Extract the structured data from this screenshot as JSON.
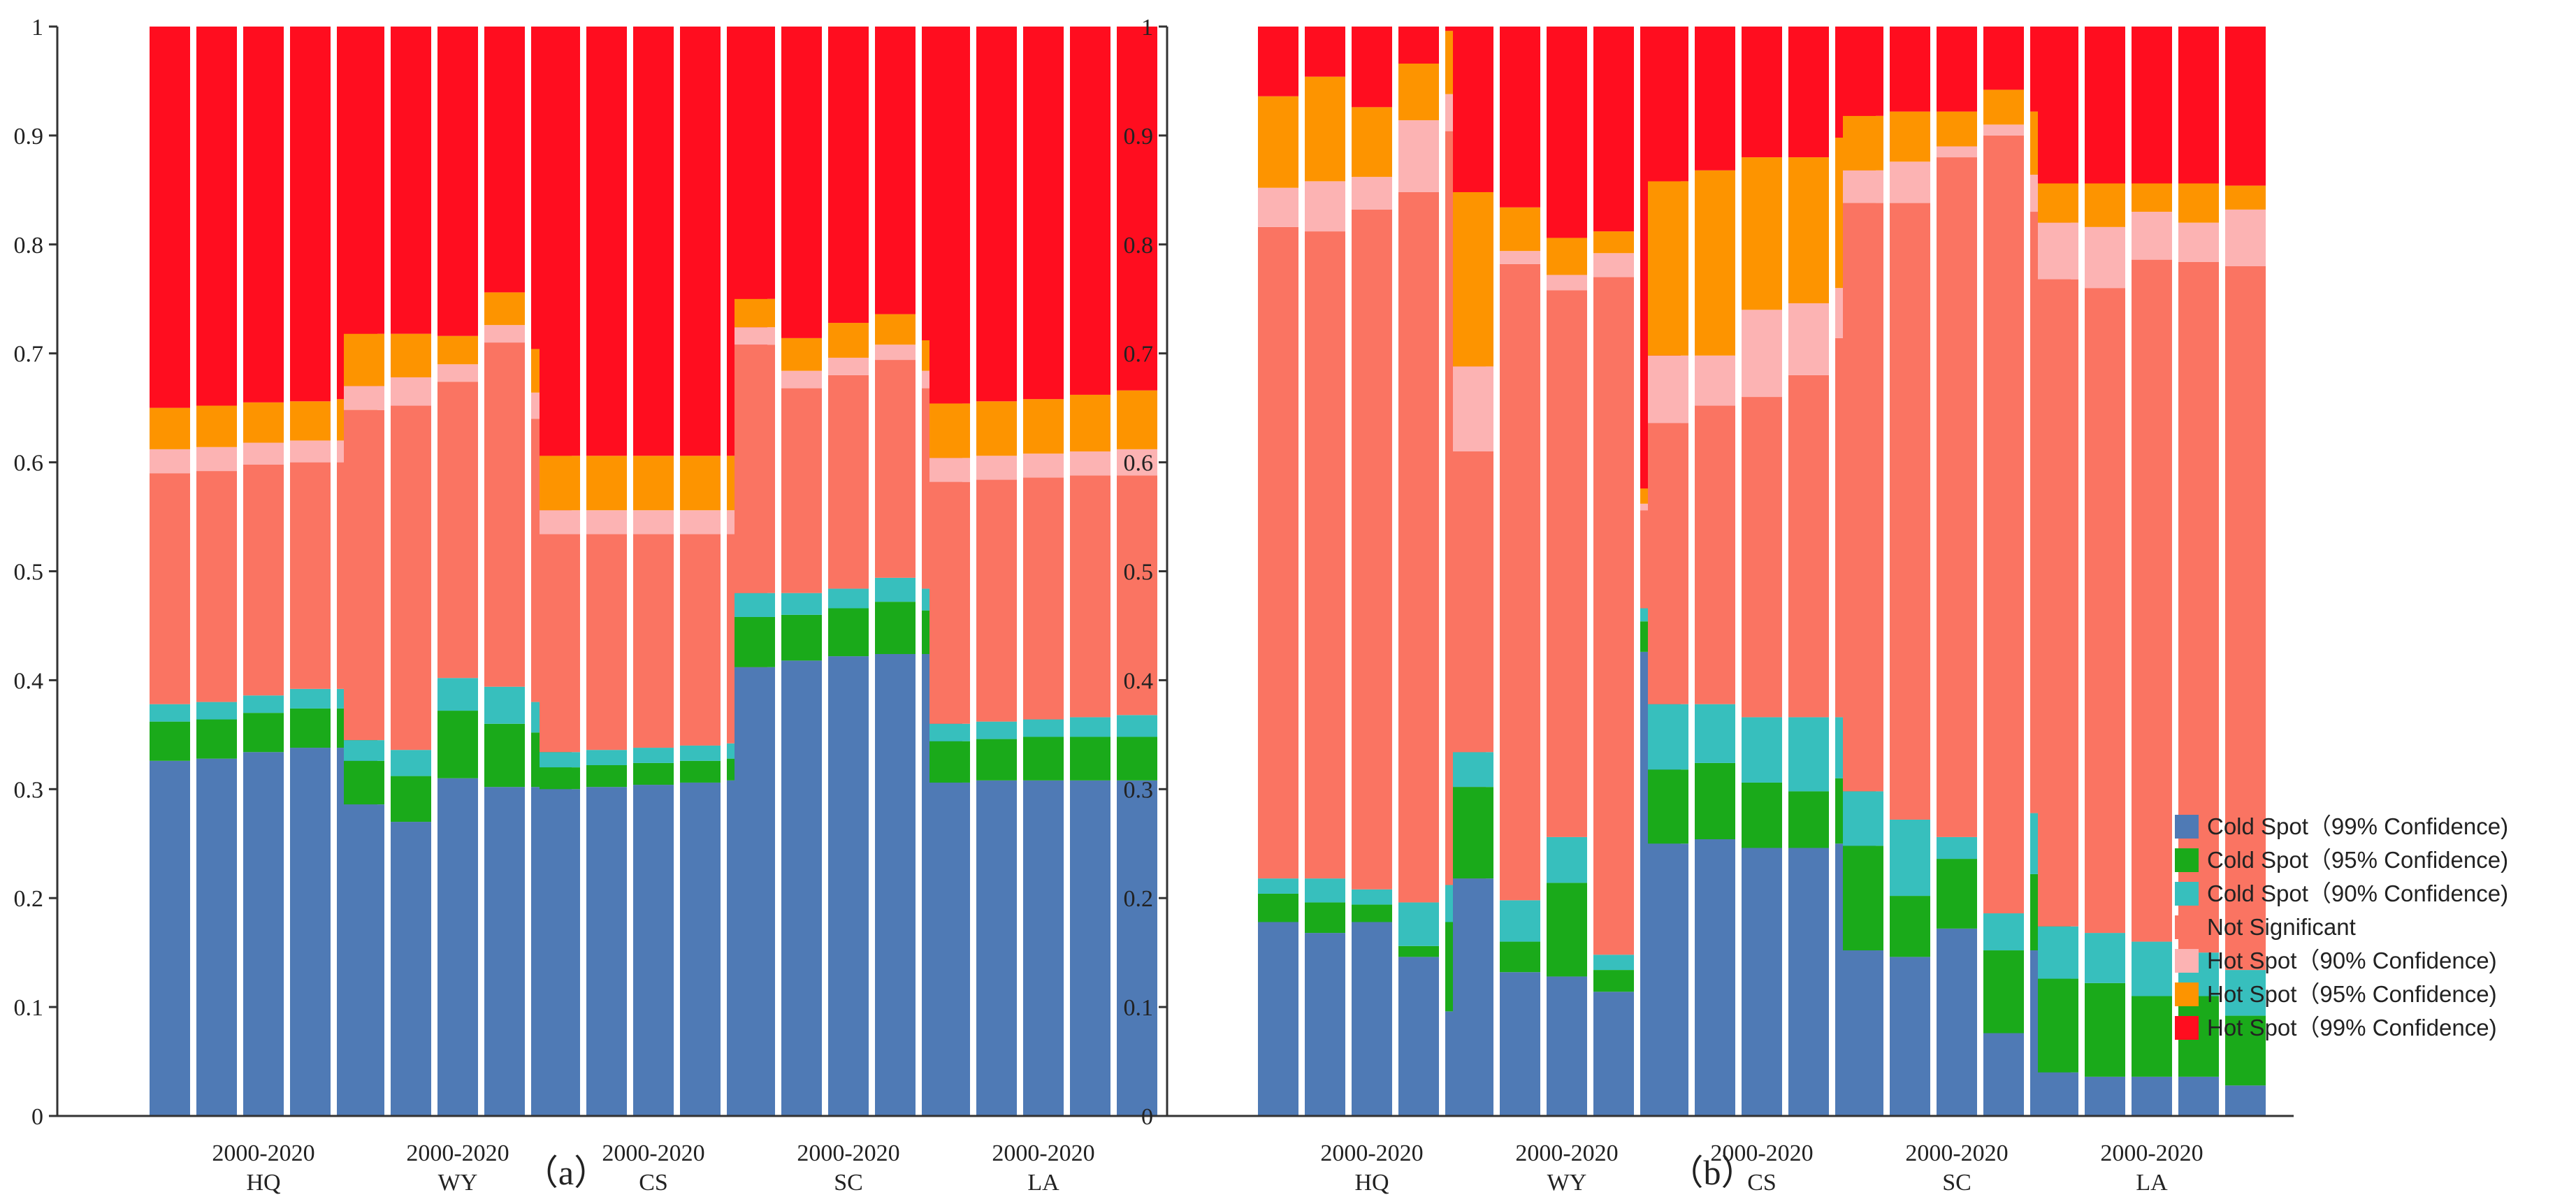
{
  "figure": {
    "panel_labels": [
      "（a）",
      "（b）"
    ]
  },
  "segment_names": [
    "Cold Spot（99% Confidence)",
    "Cold Spot（95% Confidence)",
    "Cold Spot（90% Confidence)",
    "Not Significant",
    "Hot Spot（90% Confidence)",
    "Hot Spot（95% Confidence)",
    "Hot Spot（99% Confidence)"
  ],
  "colors": [
    "#4f7ab5",
    "#1aaa1a",
    "#37bfbd",
    "#fa7462",
    "#fcb3b3",
    "#fd9400",
    "#ff0d1f"
  ],
  "chart_data": [
    {
      "type": "stacked-bar",
      "panel_label": "（a）",
      "ylim": [
        0,
        1
      ],
      "yticks": [
        "0",
        "0.1",
        "0.2",
        "0.3",
        "0.4",
        "0.5",
        "0.6",
        "0.7",
        "0.8",
        "0.9",
        "1"
      ],
      "bars_per_group": 5,
      "groups": [
        {
          "period": "2000-2020",
          "name": "HQ",
          "bars": [
            [
              0.326,
              0.362,
              0.378,
              0.59,
              0.612,
              0.65,
              1
            ],
            [
              0.328,
              0.364,
              0.38,
              0.592,
              0.614,
              0.652,
              1
            ],
            [
              0.334,
              0.37,
              0.386,
              0.598,
              0.618,
              0.655,
              1
            ],
            [
              0.338,
              0.374,
              0.392,
              0.6,
              0.62,
              0.656,
              1
            ],
            [
              0.338,
              0.374,
              0.392,
              0.6,
              0.62,
              0.658,
              1
            ]
          ]
        },
        {
          "period": "2000-2020",
          "name": "WY",
          "bars": [
            [
              0.286,
              0.326,
              0.345,
              0.648,
              0.67,
              0.718,
              1
            ],
            [
              0.27,
              0.312,
              0.336,
              0.652,
              0.678,
              0.718,
              1
            ],
            [
              0.31,
              0.372,
              0.402,
              0.674,
              0.69,
              0.716,
              1
            ],
            [
              0.302,
              0.36,
              0.394,
              0.71,
              0.726,
              0.756,
              1
            ],
            [
              0.302,
              0.352,
              0.38,
              0.64,
              0.664,
              0.704,
              1
            ]
          ]
        },
        {
          "period": "2000-2020",
          "name": "CS",
          "bars": [
            [
              0.3,
              0.32,
              0.334,
              0.534,
              0.556,
              0.606,
              1
            ],
            [
              0.302,
              0.322,
              0.336,
              0.534,
              0.556,
              0.606,
              1
            ],
            [
              0.304,
              0.324,
              0.338,
              0.534,
              0.556,
              0.606,
              1
            ],
            [
              0.306,
              0.326,
              0.34,
              0.534,
              0.556,
              0.606,
              1
            ],
            [
              0.308,
              0.328,
              0.342,
              0.534,
              0.556,
              0.606,
              1
            ]
          ]
        },
        {
          "period": "2000-2020",
          "name": "SC",
          "bars": [
            [
              0.412,
              0.458,
              0.48,
              0.708,
              0.724,
              0.75,
              1
            ],
            [
              0.418,
              0.46,
              0.48,
              0.668,
              0.684,
              0.714,
              1
            ],
            [
              0.422,
              0.466,
              0.484,
              0.68,
              0.696,
              0.728,
              1
            ],
            [
              0.424,
              0.472,
              0.494,
              0.694,
              0.708,
              0.736,
              1
            ],
            [
              0.424,
              0.464,
              0.484,
              0.668,
              0.684,
              0.712,
              1
            ]
          ]
        },
        {
          "period": "2000-2020",
          "name": "LA",
          "bars": [
            [
              0.306,
              0.344,
              0.36,
              0.582,
              0.604,
              0.654,
              1
            ],
            [
              0.308,
              0.346,
              0.362,
              0.584,
              0.606,
              0.656,
              1
            ],
            [
              0.308,
              0.348,
              0.364,
              0.586,
              0.608,
              0.658,
              1
            ],
            [
              0.308,
              0.348,
              0.366,
              0.588,
              0.61,
              0.662,
              1
            ],
            [
              0.308,
              0.348,
              0.368,
              0.588,
              0.612,
              0.666,
              1
            ]
          ]
        }
      ]
    },
    {
      "type": "stacked-bar",
      "panel_label": "（b）",
      "ylim": [
        0,
        1
      ],
      "yticks": [
        "0",
        "0.1",
        "0.2",
        "0.3",
        "0.4",
        "0.5",
        "0.6",
        "0.7",
        "0.8",
        "0.9",
        "1"
      ],
      "bars_per_group": 5,
      "groups": [
        {
          "period": "2000-2020",
          "name": "HQ",
          "bars": [
            [
              0.178,
              0.204,
              0.218,
              0.816,
              0.852,
              0.936,
              1
            ],
            [
              0.168,
              0.196,
              0.218,
              0.812,
              0.858,
              0.954,
              1
            ],
            [
              0.178,
              0.194,
              0.208,
              0.832,
              0.862,
              0.926,
              1
            ],
            [
              0.146,
              0.156,
              0.196,
              0.848,
              0.914,
              0.966,
              1
            ],
            [
              0.096,
              0.178,
              0.212,
              0.904,
              0.938,
              0.996,
              1
            ]
          ]
        },
        {
          "period": "2000-2020",
          "name": "WY",
          "bars": [
            [
              0.218,
              0.302,
              0.334,
              0.61,
              0.688,
              0.848,
              1
            ],
            [
              0.132,
              0.16,
              0.198,
              0.782,
              0.794,
              0.834,
              1
            ],
            [
              0.128,
              0.214,
              0.256,
              0.758,
              0.772,
              0.806,
              1
            ],
            [
              0.114,
              0.134,
              0.148,
              0.77,
              0.792,
              0.812,
              1
            ],
            [
              0.426,
              0.454,
              0.466,
              0.556,
              0.562,
              0.576,
              1
            ]
          ]
        },
        {
          "period": "2000-2020",
          "name": "CS",
          "bars": [
            [
              0.25,
              0.318,
              0.378,
              0.636,
              0.698,
              0.858,
              1
            ],
            [
              0.254,
              0.324,
              0.378,
              0.652,
              0.698,
              0.868,
              1
            ],
            [
              0.246,
              0.306,
              0.366,
              0.66,
              0.74,
              0.88,
              1
            ],
            [
              0.246,
              0.298,
              0.366,
              0.68,
              0.746,
              0.88,
              1
            ],
            [
              0.25,
              0.31,
              0.366,
              0.714,
              0.76,
              0.898,
              1
            ]
          ]
        },
        {
          "period": "2000-2020",
          "name": "SC",
          "bars": [
            [
              0.152,
              0.248,
              0.298,
              0.838,
              0.868,
              0.918,
              1
            ],
            [
              0.146,
              0.202,
              0.272,
              0.838,
              0.876,
              0.922,
              1
            ],
            [
              0.172,
              0.236,
              0.256,
              0.88,
              0.89,
              0.922,
              1
            ],
            [
              0.076,
              0.152,
              0.186,
              0.9,
              0.91,
              0.942,
              1
            ],
            [
              0.152,
              0.222,
              0.278,
              0.83,
              0.864,
              0.922,
              1
            ]
          ]
        },
        {
          "period": "2000-2020",
          "name": "LA",
          "bars": [
            [
              0.04,
              0.126,
              0.174,
              0.768,
              0.82,
              0.856,
              1
            ],
            [
              0.036,
              0.122,
              0.168,
              0.76,
              0.816,
              0.856,
              1
            ],
            [
              0.036,
              0.11,
              0.16,
              0.786,
              0.83,
              0.856,
              1
            ],
            [
              0.036,
              0.11,
              0.15,
              0.784,
              0.82,
              0.856,
              1
            ],
            [
              0.028,
              0.092,
              0.134,
              0.78,
              0.832,
              0.854,
              1
            ]
          ]
        }
      ]
    }
  ]
}
